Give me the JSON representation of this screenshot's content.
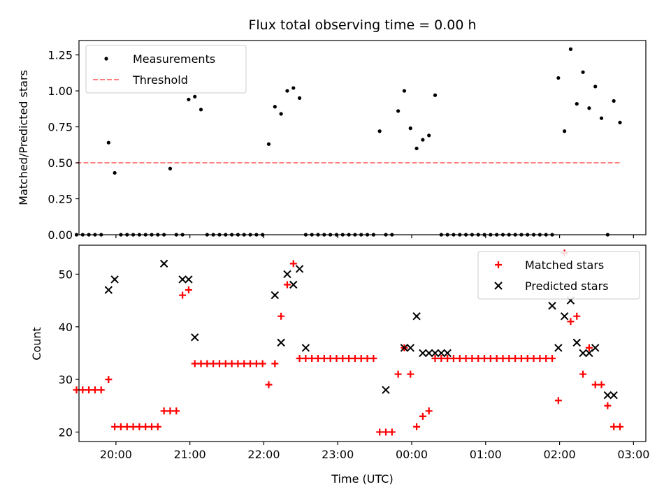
{
  "chart_data": [
    {
      "type": "scatter",
      "title": "Flux total observing time = 0.00 h",
      "xlabel": "",
      "ylabel": "Matched/Predicted stars",
      "xlim": [
        "19:30",
        "03:10"
      ],
      "ylim": [
        0,
        1.35
      ],
      "yticks": [
        "0.00",
        "0.25",
        "0.50",
        "0.75",
        "1.00",
        "1.25"
      ],
      "xticks": [
        "20:00",
        "21:00",
        "22:00",
        "23:00",
        "00:00",
        "01:00",
        "02:00",
        "03:00"
      ],
      "legend": "upper-left",
      "grid": false,
      "series": [
        {
          "name": "Measurements",
          "color": "#000000",
          "marker": "dot",
          "x": [
            "19:28",
            "19:33",
            "19:38",
            "19:43",
            "19:48",
            "19:54",
            "19:59",
            "20:04",
            "20:09",
            "20:14",
            "20:19",
            "20:24",
            "20:29",
            "20:34",
            "20:39",
            "20:44",
            "20:49",
            "20:54",
            "20:59",
            "21:04",
            "21:09",
            "21:14",
            "21:19",
            "21:24",
            "21:29",
            "21:34",
            "21:39",
            "21:44",
            "21:49",
            "21:54",
            "21:59",
            "22:04",
            "22:09",
            "22:14",
            "22:19",
            "22:24",
            "22:29",
            "22:34",
            "22:39",
            "22:44",
            "22:49",
            "22:54",
            "22:59",
            "23:04",
            "23:09",
            "23:14",
            "23:19",
            "23:24",
            "23:29",
            "23:34",
            "23:39",
            "23:44",
            "23:49",
            "23:54",
            "23:59",
            "00:04",
            "00:09",
            "00:14",
            "00:19",
            "00:24",
            "00:29",
            "00:34",
            "00:39",
            "00:44",
            "00:49",
            "00:54",
            "00:59",
            "01:04",
            "01:09",
            "01:14",
            "01:19",
            "01:24",
            "01:29",
            "01:34",
            "01:39",
            "01:44",
            "01:49",
            "01:54",
            "01:59",
            "02:04",
            "02:09",
            "02:14",
            "02:19",
            "02:24",
            "02:29",
            "02:34",
            "02:39",
            "02:44",
            "02:49"
          ],
          "y": [
            0,
            0,
            0,
            0,
            0,
            0.64,
            0.43,
            0,
            0,
            0,
            0,
            0,
            0,
            0,
            0,
            0.46,
            0,
            0,
            0.94,
            0.96,
            0.87,
            0,
            0,
            0,
            0,
            0,
            0,
            0,
            0,
            0,
            0,
            0.63,
            0.89,
            0.84,
            1.0,
            1.02,
            0.95,
            0,
            0,
            0,
            0,
            0,
            0,
            0,
            0,
            0,
            0,
            0,
            0,
            0.72,
            0,
            0,
            0.86,
            1.0,
            0.74,
            0.6,
            0.66,
            0.69,
            0.97,
            0,
            0,
            0,
            0,
            0,
            0,
            0,
            0,
            0,
            0,
            0,
            0,
            0,
            0,
            0,
            0,
            0,
            0,
            0,
            1.09,
            0.72,
            1.29,
            0.91,
            1.13,
            0.88,
            1.03,
            0.81,
            0,
            0.93,
            0.78
          ]
        },
        {
          "name": "Threshold",
          "color": "#ff7f7f",
          "style": "dashed",
          "x": [
            "19:28",
            "02:49"
          ],
          "y": [
            0.5,
            0.5
          ]
        }
      ]
    },
    {
      "type": "scatter",
      "title": "",
      "xlabel": "Time (UTC)",
      "ylabel": "Count",
      "xlim": [
        "19:30",
        "03:10"
      ],
      "ylim": [
        18.2,
        55.5
      ],
      "yticks": [
        "20",
        "30",
        "40",
        "50"
      ],
      "xticks": [
        "20:00",
        "21:00",
        "22:00",
        "23:00",
        "00:00",
        "01:00",
        "02:00",
        "03:00"
      ],
      "legend": "upper-right",
      "grid": false,
      "series": [
        {
          "name": "Matched stars",
          "color": "#ff0000",
          "marker": "plus",
          "x": [
            "19:28",
            "19:33",
            "19:38",
            "19:43",
            "19:48",
            "19:54",
            "19:59",
            "20:04",
            "20:09",
            "20:14",
            "20:19",
            "20:24",
            "20:29",
            "20:34",
            "20:39",
            "20:44",
            "20:49",
            "20:54",
            "20:59",
            "21:04",
            "21:09",
            "21:14",
            "21:19",
            "21:24",
            "21:29",
            "21:34",
            "21:39",
            "21:44",
            "21:49",
            "21:54",
            "21:59",
            "22:04",
            "22:09",
            "22:14",
            "22:19",
            "22:24",
            "22:29",
            "22:34",
            "22:39",
            "22:44",
            "22:49",
            "22:54",
            "22:59",
            "23:04",
            "23:09",
            "23:14",
            "23:19",
            "23:24",
            "23:29",
            "23:34",
            "23:39",
            "23:44",
            "23:49",
            "23:54",
            "23:59",
            "00:04",
            "00:09",
            "00:14",
            "00:19",
            "00:24",
            "00:29",
            "00:34",
            "00:39",
            "00:44",
            "00:49",
            "00:54",
            "00:59",
            "01:04",
            "01:09",
            "01:14",
            "01:19",
            "01:24",
            "01:29",
            "01:34",
            "01:39",
            "01:44",
            "01:49",
            "01:54",
            "01:59",
            "02:04",
            "02:09",
            "02:14",
            "02:19",
            "02:24",
            "02:29",
            "02:34",
            "02:39",
            "02:44",
            "02:49"
          ],
          "y": [
            28,
            28,
            28,
            28,
            28,
            30,
            21,
            21,
            21,
            21,
            21,
            21,
            21,
            21,
            24,
            24,
            24,
            46,
            47,
            33,
            33,
            33,
            33,
            33,
            33,
            33,
            33,
            33,
            33,
            33,
            33,
            29,
            33,
            42,
            48,
            52,
            34,
            34,
            34,
            34,
            34,
            34,
            34,
            34,
            34,
            34,
            34,
            34,
            34,
            20,
            20,
            20,
            31,
            36,
            31,
            21,
            23,
            24,
            34,
            34,
            34,
            34,
            34,
            34,
            34,
            34,
            34,
            34,
            34,
            34,
            34,
            34,
            34,
            34,
            34,
            34,
            34,
            34,
            26,
            54,
            41,
            42,
            31,
            36,
            29,
            29,
            25,
            21,
            21
          ]
        },
        {
          "name": "Predicted stars",
          "color": "#000000",
          "marker": "x",
          "x": [
            "19:54",
            "19:59",
            "20:39",
            "20:54",
            "20:59",
            "21:04",
            "22:09",
            "22:14",
            "22:19",
            "22:24",
            "22:29",
            "22:34",
            "23:39",
            "23:54",
            "23:59",
            "00:04",
            "00:09",
            "00:14",
            "00:19",
            "00:24",
            "00:29",
            "01:54",
            "01:59",
            "02:04",
            "02:09",
            "02:14",
            "02:19",
            "02:24",
            "02:29",
            "02:39",
            "02:44"
          ],
          "y": [
            47,
            49,
            52,
            49,
            49,
            38,
            46,
            37,
            50,
            48,
            51,
            36,
            28,
            36,
            36,
            42,
            35,
            35,
            35,
            35,
            35,
            44,
            36,
            42,
            45,
            37,
            35,
            35,
            36,
            27,
            27
          ]
        }
      ]
    }
  ]
}
